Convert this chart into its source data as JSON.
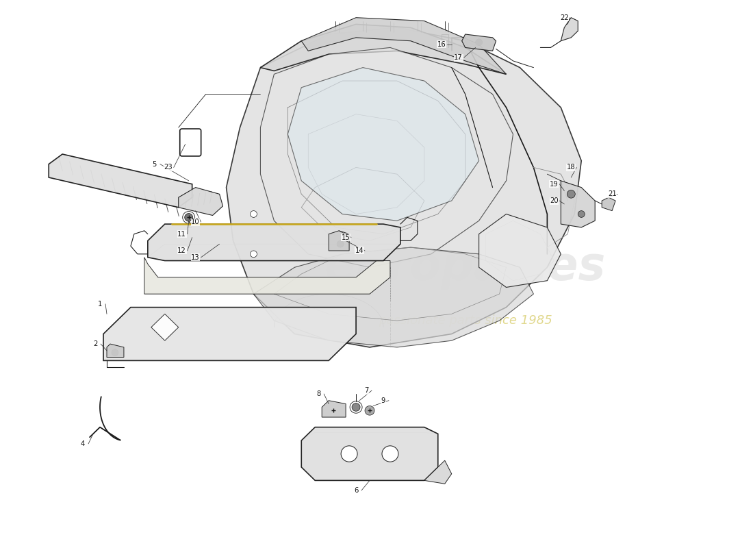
{
  "bg_color": "#ffffff",
  "line_color": "#1a1a1a",
  "label_color": "#111111",
  "body_fill": "#e8e8e8",
  "body_fill2": "#d8d8d8",
  "wm1_color": "#cccccc",
  "wm2_color": "#d4c84a",
  "figsize": [
    11.0,
    8.0
  ],
  "dpi": 100
}
